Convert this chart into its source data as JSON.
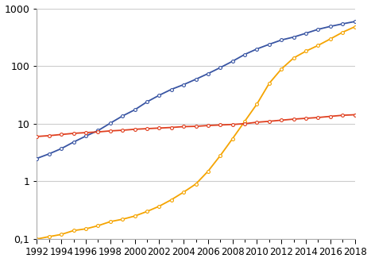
{
  "years": [
    1992,
    1993,
    1994,
    1995,
    1996,
    1997,
    1998,
    1999,
    2000,
    2001,
    2002,
    2003,
    2004,
    2005,
    2006,
    2007,
    2008,
    2009,
    2010,
    2011,
    2012,
    2013,
    2014,
    2015,
    2016,
    2017,
    2018
  ],
  "wind": [
    2.5,
    3.0,
    3.7,
    4.8,
    6.1,
    7.6,
    10.2,
    13.6,
    17.4,
    23.9,
    31.1,
    39.4,
    47.6,
    59.0,
    74.0,
    94.0,
    121.0,
    159.0,
    198.0,
    238.0,
    283.0,
    318.0,
    370.0,
    433.0,
    487.0,
    539.0,
    591.0
  ],
  "solar": [
    0.1,
    0.11,
    0.12,
    0.14,
    0.15,
    0.17,
    0.2,
    0.22,
    0.25,
    0.3,
    0.37,
    0.48,
    0.65,
    0.9,
    1.5,
    2.8,
    5.5,
    11.0,
    22.0,
    50.0,
    89.0,
    138.0,
    181.0,
    228.0,
    295.0,
    385.0,
    480.0
  ],
  "geothermal": [
    6.0,
    6.2,
    6.5,
    6.8,
    7.0,
    7.2,
    7.5,
    7.7,
    8.0,
    8.2,
    8.4,
    8.6,
    8.9,
    9.0,
    9.3,
    9.5,
    9.7,
    10.0,
    10.6,
    11.0,
    11.5,
    12.0,
    12.4,
    12.8,
    13.4,
    14.0,
    14.3
  ],
  "wind_color": "#3955a3",
  "solar_color": "#f5a400",
  "geothermal_color": "#e04020",
  "bg_color": "#ffffff",
  "grid_color": "#cccccc",
  "ylim_min": 0.1,
  "ylim_max": 1000,
  "xlim_min": 1992,
  "xlim_max": 2018,
  "yticks": [
    0.1,
    1,
    10,
    100,
    1000
  ],
  "ytick_labels": [
    "0,1",
    "1",
    "10",
    "100",
    "1000"
  ],
  "xticks": [
    1992,
    1994,
    1996,
    1998,
    2000,
    2002,
    2004,
    2006,
    2008,
    2010,
    2012,
    2014,
    2016,
    2018
  ],
  "marker": "o",
  "markersize": 2.8,
  "linewidth": 1.3
}
